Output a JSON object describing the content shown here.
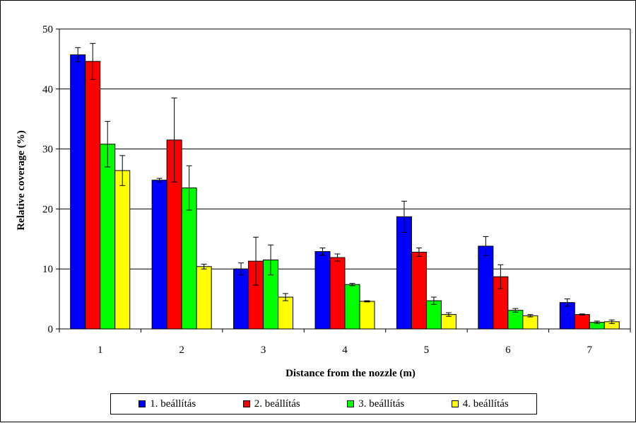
{
  "chart_data": {
    "type": "bar",
    "xlabel": "Distance from the nozzle (m)",
    "ylabel": "Relative coverage (%)",
    "categories": [
      "1",
      "2",
      "3",
      "4",
      "5",
      "6",
      "7"
    ],
    "ylim": [
      0,
      50
    ],
    "yticks": [
      0,
      10,
      20,
      30,
      40,
      50
    ],
    "grid": "horizontal",
    "legend_position": "bottom",
    "series": [
      {
        "name": "1. beállítás",
        "color": "#0000ff",
        "values": [
          45.7,
          24.8,
          10.0,
          12.9,
          18.7,
          13.8,
          4.4
        ],
        "errors": [
          1.2,
          0.3,
          1.0,
          0.6,
          2.6,
          1.6,
          0.6
        ]
      },
      {
        "name": "2. beállítás",
        "color": "#ff0000",
        "values": [
          44.6,
          31.5,
          11.3,
          11.9,
          12.8,
          8.7,
          2.4
        ],
        "errors": [
          3.0,
          7.0,
          4.0,
          0.6,
          0.7,
          2.0,
          0.1
        ]
      },
      {
        "name": "3. beállítás",
        "color": "#00ff00",
        "values": [
          30.8,
          23.5,
          11.5,
          7.4,
          4.7,
          3.1,
          1.1
        ],
        "errors": [
          3.8,
          3.7,
          2.5,
          0.2,
          0.6,
          0.3,
          0.2
        ]
      },
      {
        "name": "4. beállítás",
        "color": "#ffff00",
        "values": [
          26.4,
          10.4,
          5.3,
          4.6,
          2.4,
          2.2,
          1.2
        ],
        "errors": [
          2.5,
          0.4,
          0.6,
          0.1,
          0.3,
          0.2,
          0.3
        ]
      }
    ]
  }
}
